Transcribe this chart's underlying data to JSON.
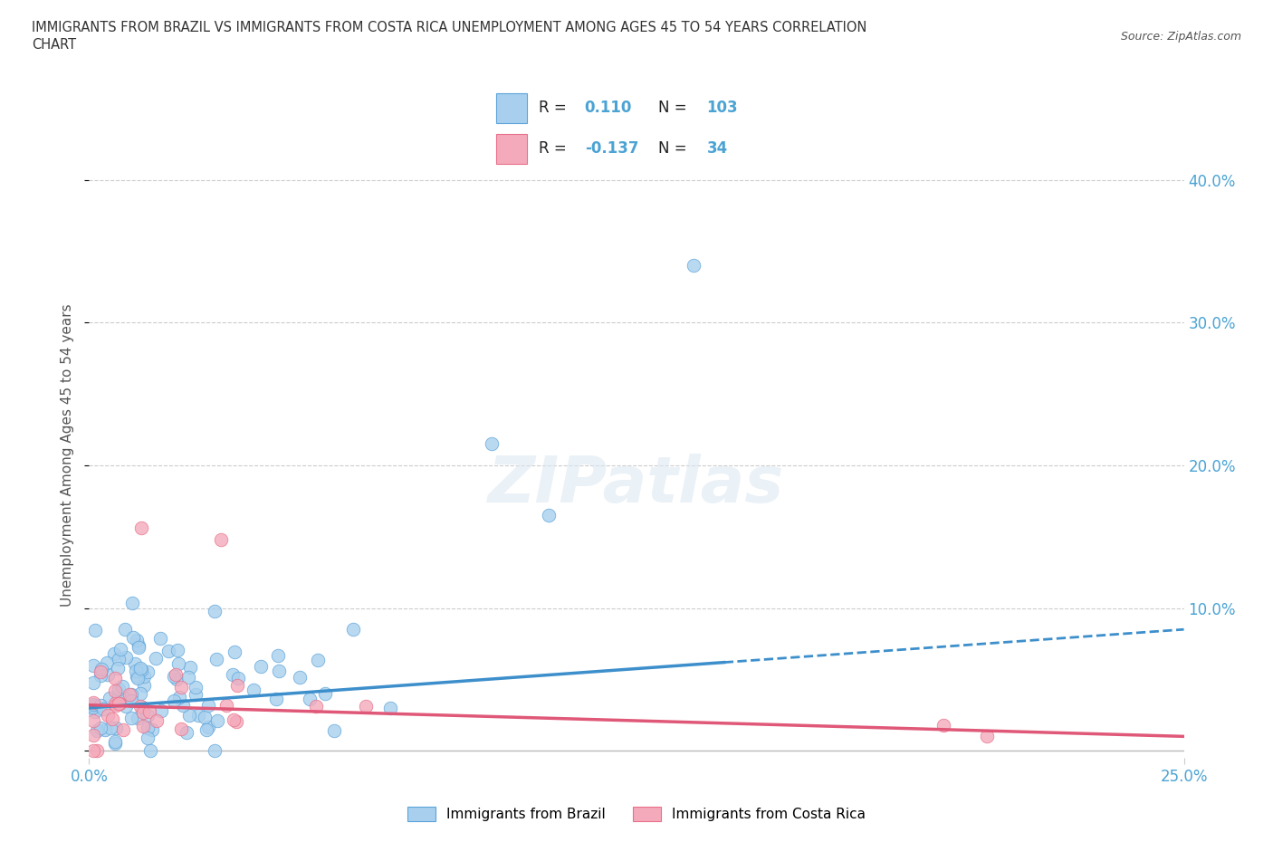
{
  "title_line1": "IMMIGRANTS FROM BRAZIL VS IMMIGRANTS FROM COSTA RICA UNEMPLOYMENT AMONG AGES 45 TO 54 YEARS CORRELATION",
  "title_line2": "CHART",
  "source": "Source: ZipAtlas.com",
  "ylabel": "Unemployment Among Ages 45 to 54 years",
  "xlim": [
    0.0,
    0.25
  ],
  "ylim": [
    -0.005,
    0.42
  ],
  "yticks": [
    0.0,
    0.1,
    0.2,
    0.3,
    0.4
  ],
  "ytick_labels_right": [
    "",
    "10.0%",
    "20.0%",
    "30.0%",
    "40.0%"
  ],
  "brazil_R": 0.11,
  "brazil_N": 103,
  "costarica_R": -0.137,
  "costarica_N": 34,
  "brazil_color": "#A8D0EE",
  "costarica_color": "#F4AABB",
  "brazil_edge_color": "#5BA3D9",
  "costarica_edge_color": "#E8708A",
  "brazil_line_color": "#3D8FCC",
  "costarica_line_color": "#E05878",
  "background_color": "#ffffff",
  "watermark": "ZIPatlas",
  "legend_brazil": "Immigrants from Brazil",
  "legend_cr": "Immigrants from Costa Rica",
  "brazil_line_y0": 0.03,
  "brazil_line_y1": 0.085,
  "costarica_line_y0": 0.032,
  "costarica_line_y1": 0.01
}
